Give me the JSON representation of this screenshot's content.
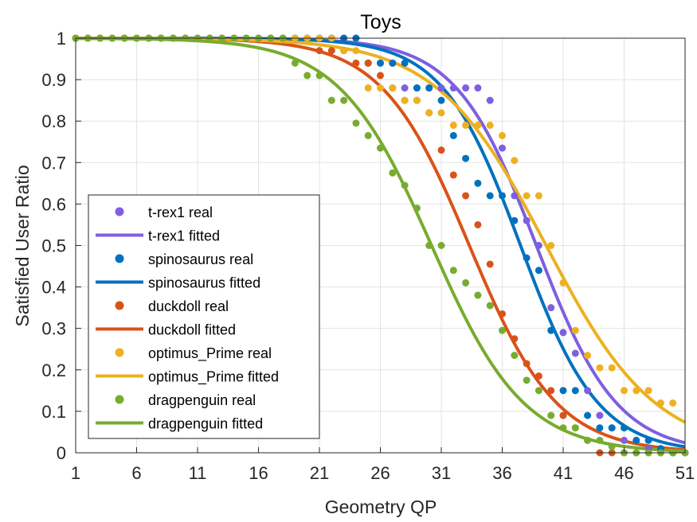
{
  "chart_data": {
    "type": "scatter",
    "title": "Toys",
    "xlabel": "Geometry QP",
    "ylabel": "Satisfied User Ratio",
    "xlim": [
      1,
      51
    ],
    "ylim": [
      0,
      1
    ],
    "xticks": [
      1,
      6,
      11,
      16,
      21,
      26,
      31,
      36,
      41,
      46,
      51
    ],
    "yticks": [
      0,
      0.1,
      0.2,
      0.3,
      0.4,
      0.5,
      0.6,
      0.7,
      0.8,
      0.9,
      1
    ],
    "grid": true,
    "legend_position": "bottom-left",
    "series": [
      {
        "name": "t-rex1",
        "real_label": "t-rex1 real",
        "fitted_label": "t-rex1 fitted",
        "color": "#7E5FE0",
        "fit_mean": 38.8,
        "fit_scale": 3.3,
        "real_x": [
          1,
          2,
          3,
          4,
          5,
          6,
          7,
          8,
          9,
          10,
          11,
          12,
          13,
          14,
          15,
          16,
          17,
          18,
          19,
          20,
          21,
          22,
          23,
          24,
          25,
          26,
          27,
          28,
          29,
          30,
          31,
          32,
          33,
          34,
          35,
          36,
          37,
          38,
          39,
          40,
          41,
          42,
          43,
          44,
          45,
          46,
          47,
          48,
          49,
          50,
          51
        ],
        "real_y": [
          1,
          1,
          1,
          1,
          1,
          1,
          1,
          1,
          1,
          1,
          1,
          1,
          1,
          1,
          1,
          1,
          1,
          1,
          1,
          1,
          1,
          1,
          1,
          1,
          0.94,
          0.94,
          0.94,
          0.88,
          0.88,
          0.88,
          0.88,
          0.88,
          0.88,
          0.88,
          0.85,
          0.735,
          0.62,
          0.56,
          0.5,
          0.35,
          0.29,
          0.24,
          0.15,
          0.09,
          0.06,
          0.03,
          0.03,
          0.01,
          0.01,
          0,
          0
        ]
      },
      {
        "name": "spinosaurus",
        "real_label": "spinosaurus real",
        "fitted_label": "spinosaurus fitted",
        "color": "#0072BD",
        "fit_mean": 37.5,
        "fit_scale": 3.2,
        "real_x": [
          1,
          2,
          3,
          4,
          5,
          6,
          7,
          8,
          9,
          10,
          11,
          12,
          13,
          14,
          15,
          16,
          17,
          18,
          19,
          20,
          21,
          22,
          23,
          24,
          25,
          26,
          27,
          28,
          29,
          30,
          31,
          32,
          33,
          34,
          35,
          36,
          37,
          38,
          39,
          40,
          41,
          42,
          43,
          44,
          45,
          46,
          47,
          48,
          49,
          50,
          51
        ],
        "real_y": [
          1,
          1,
          1,
          1,
          1,
          1,
          1,
          1,
          1,
          1,
          1,
          1,
          1,
          1,
          1,
          1,
          1,
          1,
          1,
          1,
          1,
          1,
          1,
          1,
          0.94,
          0.94,
          0.94,
          0.94,
          0.88,
          0.88,
          0.85,
          0.765,
          0.71,
          0.65,
          0.62,
          0.62,
          0.56,
          0.47,
          0.44,
          0.295,
          0.15,
          0.15,
          0.09,
          0.06,
          0.06,
          0.06,
          0.03,
          0.03,
          0.01,
          0,
          0
        ]
      },
      {
        "name": "duckdoll",
        "real_label": "duckdoll real",
        "fitted_label": "duckdoll fitted",
        "color": "#D95319",
        "fit_mean": 33.3,
        "fit_scale": 3.6,
        "real_x": [
          1,
          2,
          3,
          4,
          5,
          6,
          7,
          8,
          9,
          10,
          11,
          12,
          13,
          14,
          15,
          16,
          17,
          18,
          19,
          20,
          21,
          22,
          23,
          24,
          25,
          26,
          27,
          28,
          29,
          30,
          31,
          32,
          33,
          34,
          35,
          36,
          37,
          38,
          39,
          40,
          41,
          42,
          43,
          44,
          45,
          46,
          47,
          48,
          49,
          50,
          51
        ],
        "real_y": [
          1,
          1,
          1,
          1,
          1,
          1,
          1,
          1,
          1,
          1,
          1,
          1,
          1,
          1,
          1,
          1,
          1,
          1,
          1,
          1,
          0.97,
          0.97,
          0.97,
          0.94,
          0.94,
          0.91,
          0.88,
          0.85,
          0.85,
          0.82,
          0.73,
          0.67,
          0.62,
          0.55,
          0.455,
          0.335,
          0.275,
          0.215,
          0.185,
          0.15,
          0.09,
          0.06,
          0.03,
          0,
          0,
          0,
          0,
          0,
          0,
          0,
          0
        ]
      },
      {
        "name": "optimus_Prime",
        "real_label": "optimus_Prime real",
        "fitted_label": "optimus_Prime fitted",
        "color": "#EDB120",
        "fit_mean": 39.6,
        "fit_scale": 4.5,
        "real_x": [
          1,
          2,
          3,
          4,
          5,
          6,
          7,
          8,
          9,
          10,
          11,
          12,
          13,
          14,
          15,
          16,
          17,
          18,
          19,
          20,
          21,
          22,
          23,
          24,
          25,
          26,
          27,
          28,
          29,
          30,
          31,
          32,
          33,
          34,
          35,
          36,
          37,
          38,
          39,
          40,
          41,
          42,
          43,
          44,
          45,
          46,
          47,
          48,
          49,
          50,
          51
        ],
        "real_y": [
          1,
          1,
          1,
          1,
          1,
          1,
          1,
          1,
          1,
          1,
          1,
          1,
          1,
          1,
          1,
          1,
          1,
          1,
          1,
          1,
          1,
          1,
          0.97,
          0.97,
          0.88,
          0.88,
          0.88,
          0.85,
          0.85,
          0.82,
          0.82,
          0.79,
          0.79,
          0.79,
          0.79,
          0.765,
          0.705,
          0.62,
          0.62,
          0.5,
          0.41,
          0.295,
          0.235,
          0.205,
          0.205,
          0.15,
          0.15,
          0.15,
          0.12,
          0.12,
          0
        ]
      },
      {
        "name": "dragpenguin",
        "real_label": "dragpenguin real",
        "fitted_label": "dragpenguin fitted",
        "color": "#77AC30",
        "fit_mean": 30.2,
        "fit_scale": 3.8,
        "real_x": [
          1,
          2,
          3,
          4,
          5,
          6,
          7,
          8,
          9,
          10,
          11,
          12,
          13,
          14,
          15,
          16,
          17,
          18,
          19,
          20,
          21,
          22,
          23,
          24,
          25,
          26,
          27,
          28,
          29,
          30,
          31,
          32,
          33,
          34,
          35,
          36,
          37,
          38,
          39,
          40,
          41,
          42,
          43,
          44,
          45,
          46,
          47,
          48,
          49,
          50,
          51
        ],
        "real_y": [
          1,
          1,
          1,
          1,
          1,
          1,
          1,
          1,
          1,
          1,
          1,
          1,
          1,
          1,
          1,
          1,
          1,
          1,
          0.94,
          0.91,
          0.91,
          0.85,
          0.85,
          0.795,
          0.765,
          0.735,
          0.675,
          0.645,
          0.59,
          0.5,
          0.5,
          0.44,
          0.41,
          0.38,
          0.355,
          0.295,
          0.235,
          0.175,
          0.15,
          0.09,
          0.06,
          0.06,
          0.03,
          0.03,
          0.015,
          0,
          0,
          0,
          0,
          0,
          0
        ]
      }
    ]
  }
}
